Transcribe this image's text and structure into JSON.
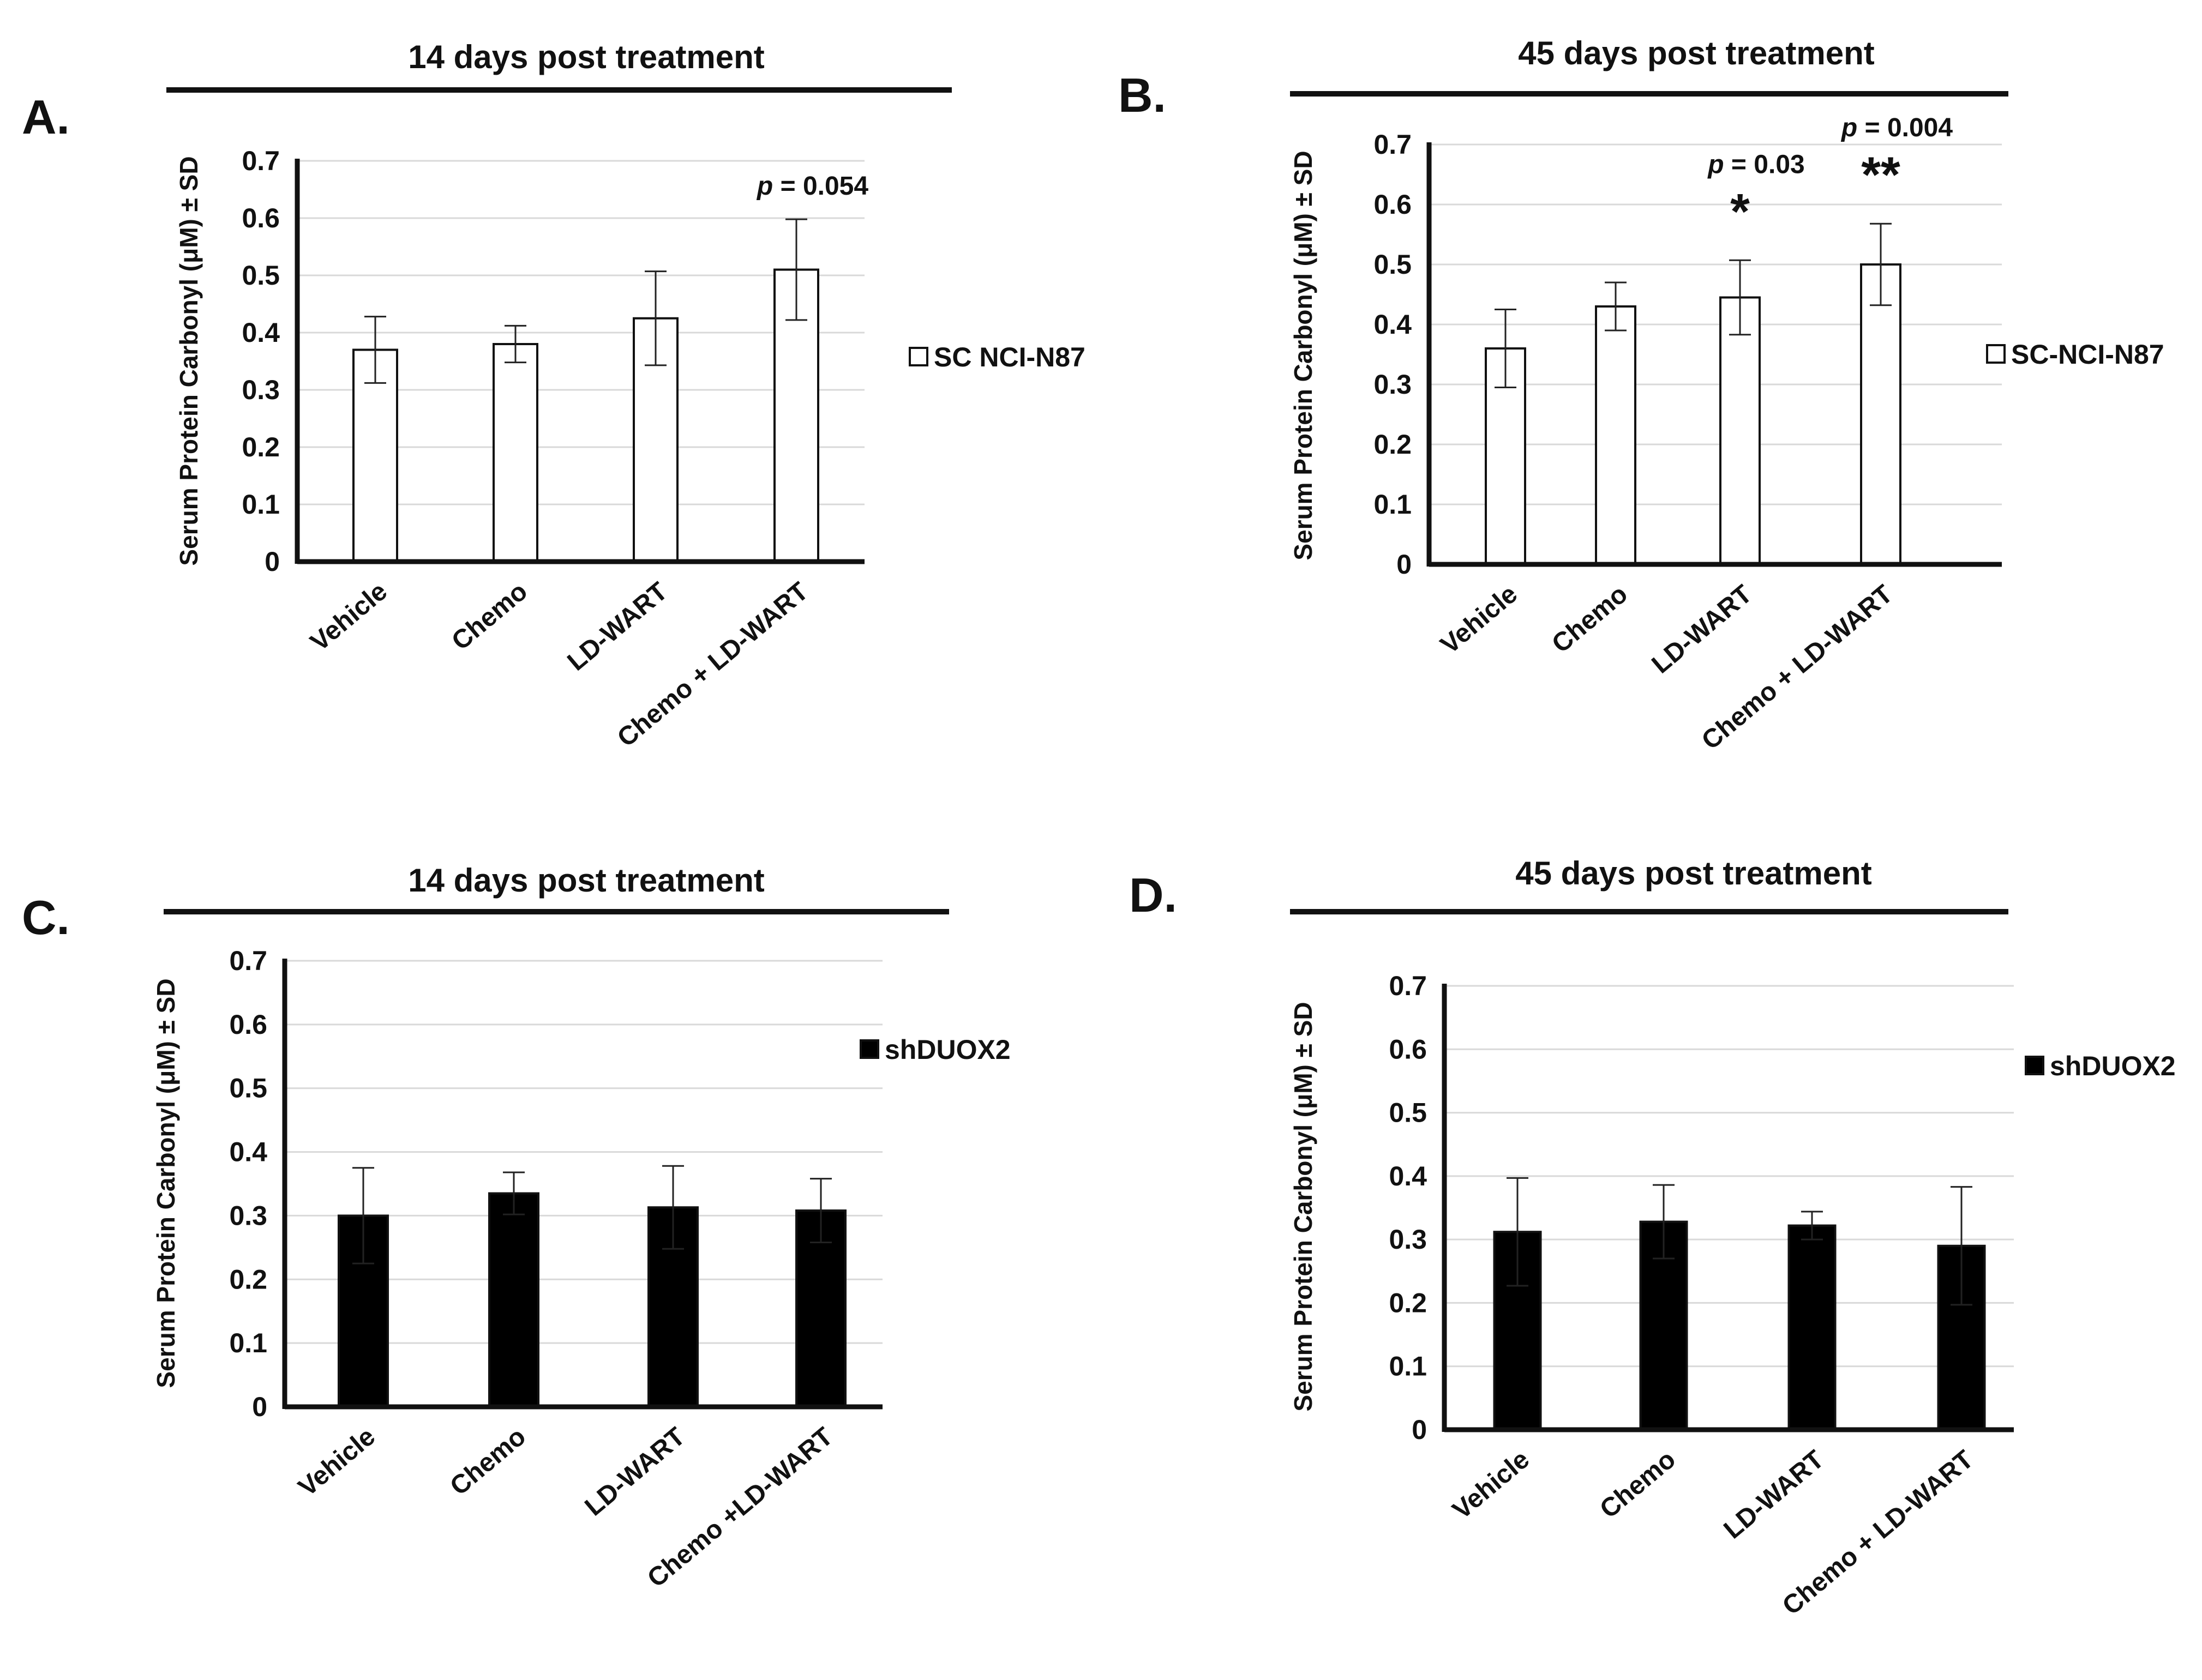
{
  "chart_data": [
    {
      "id": "A",
      "panel_label": "A.",
      "type": "bar",
      "title": "14 days post treatment",
      "ylabel": "Serum Protein Carbonyl (μM) ± SD",
      "xlabel": "",
      "ylim": [
        0,
        0.7
      ],
      "yticks": [
        "0",
        "0.1",
        "0.2",
        "0.3",
        "0.4",
        "0.5",
        "0.6",
        "0.7"
      ],
      "categories": [
        "Vehicle",
        "Chemo",
        "LD-WART",
        "Chemo + LD-WART"
      ],
      "series": [
        {
          "name": "SC NCI-N87",
          "values": [
            0.37,
            0.38,
            0.425,
            0.51
          ],
          "errors": [
            0.058,
            0.032,
            0.082,
            0.088
          ],
          "color": "#ffffff"
        }
      ],
      "legend": {
        "label": "SC NCI-N87",
        "position": "right"
      },
      "annotations": [
        {
          "category_index": 3,
          "p_italic": "p",
          "p_rest": " = 0.054",
          "stars": ""
        }
      ],
      "grid": true
    },
    {
      "id": "B",
      "panel_label": "B.",
      "type": "bar",
      "title": "45 days post treatment",
      "ylabel": "Serum Protein Carbonyl (μM) ± SD",
      "xlabel": "",
      "ylim": [
        0,
        0.7
      ],
      "yticks": [
        "0",
        "0.1",
        "0.2",
        "0.3",
        "0.4",
        "0.5",
        "0.6",
        "0.7"
      ],
      "categories": [
        "Vehicle",
        "Chemo",
        "LD-WART",
        "Chemo + LD-WART"
      ],
      "series": [
        {
          "name": "SC-NCI-N87",
          "values": [
            0.36,
            0.43,
            0.445,
            0.5
          ],
          "errors": [
            0.065,
            0.04,
            0.062,
            0.068
          ],
          "color": "#ffffff"
        }
      ],
      "legend": {
        "label": "SC-NCI-N87",
        "position": "right"
      },
      "annotations": [
        {
          "category_index": 2,
          "p_italic": "p",
          "p_rest": " = 0.03",
          "stars": "*"
        },
        {
          "category_index": 3,
          "p_italic": "p",
          "p_rest": " = 0.004",
          "stars": "**"
        }
      ],
      "grid": true
    },
    {
      "id": "C",
      "panel_label": "C.",
      "type": "bar",
      "title": "14 days post treatment",
      "ylabel": "Serum Protein Carbonyl (μM) ± SD",
      "xlabel": "",
      "ylim": [
        0,
        0.7
      ],
      "yticks": [
        "0",
        "0.1",
        "0.2",
        "0.3",
        "0.4",
        "0.5",
        "0.6",
        "0.7"
      ],
      "categories": [
        "Vehicle",
        "Chemo",
        "LD-WART",
        "Chemo +LD-WART"
      ],
      "series": [
        {
          "name": "shDUOX2",
          "values": [
            0.3,
            0.335,
            0.313,
            0.308
          ],
          "errors": [
            0.075,
            0.033,
            0.065,
            0.05
          ],
          "color": "#000000"
        }
      ],
      "legend": {
        "label": "shDUOX2",
        "position": "right"
      },
      "annotations": [],
      "grid": true
    },
    {
      "id": "D",
      "panel_label": "D.",
      "type": "bar",
      "title": "45 days post treatment",
      "ylabel": "Serum Protein Carbonyl (μM) ± SD",
      "xlabel": "",
      "ylim": [
        0,
        0.7
      ],
      "yticks": [
        "0",
        "0.1",
        "0.2",
        "0.3",
        "0.4",
        "0.5",
        "0.6",
        "0.7"
      ],
      "categories": [
        "Vehicle",
        "Chemo",
        "LD-WART",
        "Chemo + LD-WART"
      ],
      "series": [
        {
          "name": "shDUOX2",
          "values": [
            0.312,
            0.328,
            0.322,
            0.29
          ],
          "errors": [
            0.085,
            0.058,
            0.022,
            0.093
          ],
          "color": "#000000"
        }
      ],
      "legend": {
        "label": "shDUOX2",
        "position": "right"
      },
      "annotations": [],
      "grid": true
    }
  ]
}
